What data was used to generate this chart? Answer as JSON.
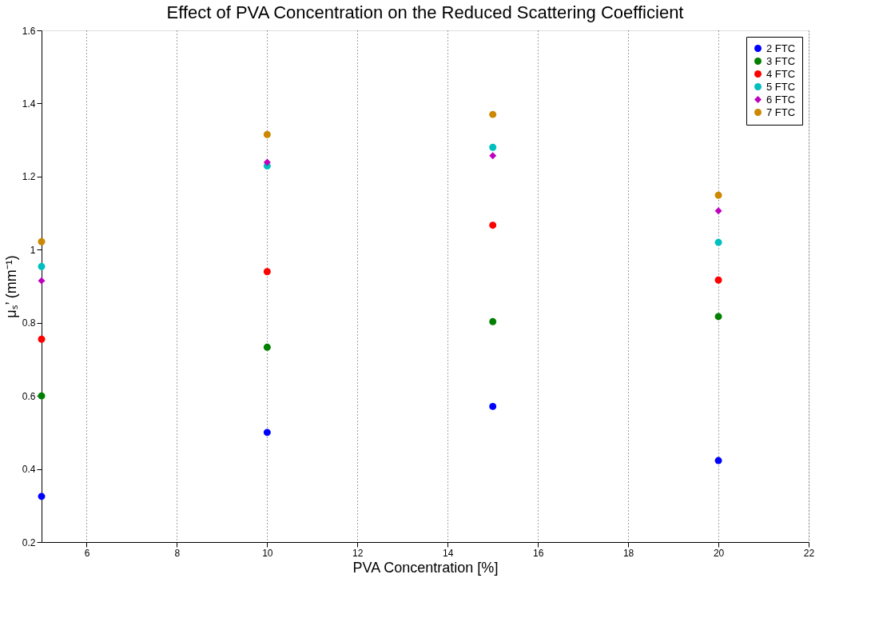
{
  "chart_data": {
    "type": "scatter",
    "title": "Effect of PVA Concentration on the Reduced Scattering Coefficient",
    "xlabel": "PVA Concentration [%]",
    "ylabel": "μₛ’ (mm⁻¹)",
    "x": [
      5,
      10,
      15,
      20
    ],
    "series": [
      {
        "name": "2 FTC",
        "color": "#0000ff",
        "marker": "circle",
        "values": [
          0.325,
          0.5,
          0.571,
          0.423
        ]
      },
      {
        "name": "3 FTC",
        "color": "#007f00",
        "marker": "circle",
        "values": [
          0.6,
          0.733,
          0.803,
          0.817
        ]
      },
      {
        "name": "4 FTC",
        "color": "#ff0000",
        "marker": "circle",
        "values": [
          0.755,
          0.94,
          1.067,
          0.917
        ]
      },
      {
        "name": "5 FTC",
        "color": "#00bfbf",
        "marker": "circle",
        "values": [
          0.954,
          1.229,
          1.28,
          1.02
        ]
      },
      {
        "name": "6 FTC",
        "color": "#bf00bf",
        "marker": "diamond",
        "values": [
          0.915,
          1.239,
          1.257,
          1.106
        ]
      },
      {
        "name": "7 FTC",
        "color": "#cc8800",
        "marker": "circle",
        "values": [
          1.022,
          1.315,
          1.37,
          1.149
        ]
      }
    ],
    "xlim": [
      5,
      22
    ],
    "xticks": [
      6,
      8,
      10,
      12,
      14,
      16,
      18,
      20,
      22
    ],
    "ylim": [
      0.2,
      1.6
    ],
    "yticks": [
      0.2,
      0.4,
      0.6,
      0.8,
      {
        "value": 1,
        "label": "1"
      },
      1.2,
      1.4,
      1.6
    ],
    "grid": "x",
    "legend": "top right"
  }
}
